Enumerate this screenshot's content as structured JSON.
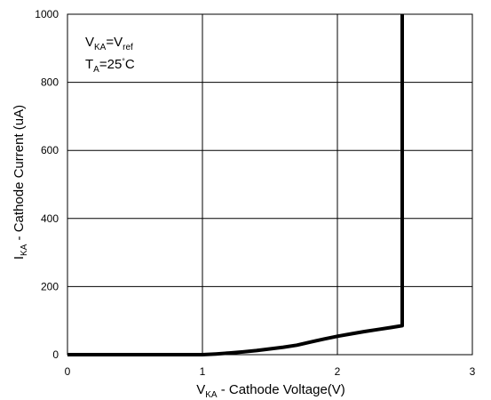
{
  "chart_data": {
    "type": "line",
    "title": "",
    "xlabel": {
      "main": "V",
      "sub": "KA",
      "rest": " - Cathode Voltage(V)"
    },
    "ylabel": {
      "main": "I",
      "sub": "KA",
      "rest": " - Cathode Current (uA)"
    },
    "xlim": [
      0,
      3
    ],
    "ylim": [
      0,
      1000
    ],
    "x_ticks": [
      0,
      1,
      2,
      3
    ],
    "x_tick_labels": [
      "0",
      "1",
      "2",
      "3"
    ],
    "y_ticks": [
      0,
      200,
      400,
      600,
      800,
      1000
    ],
    "y_tick_labels": [
      "0",
      "200",
      "400",
      "600",
      "800",
      "1000"
    ],
    "grid": true,
    "annotations": {
      "line1": {
        "v": "V",
        "v_sub": "KA",
        "eq": "=V",
        "ref_sub": "ref"
      },
      "line2": {
        "t": "T",
        "t_sub": "A",
        "eq": "=25",
        "deg": "°",
        "unit": "C"
      }
    },
    "series": [
      {
        "color": "#000000",
        "x": [
          0,
          0.5,
          1.0,
          1.1,
          1.2,
          1.3,
          1.4,
          1.5,
          1.6,
          1.7,
          1.8,
          1.9,
          2.0,
          2.1,
          2.2,
          2.3,
          2.4,
          2.48,
          2.48
        ],
        "y": [
          0,
          0,
          0,
          2,
          5,
          8,
          12,
          17,
          22,
          28,
          37,
          46,
          54,
          61,
          68,
          74,
          80,
          85,
          1000
        ]
      }
    ]
  }
}
